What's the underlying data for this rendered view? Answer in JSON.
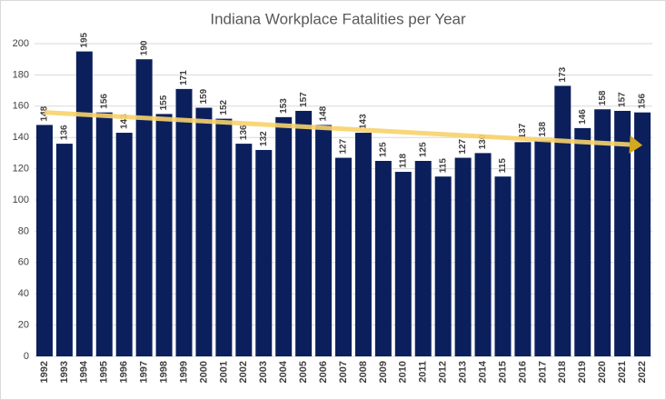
{
  "chart_data": {
    "type": "bar",
    "title": "Indiana Workplace Fatalities per Year",
    "categories": [
      "1992",
      "1993",
      "1994",
      "1995",
      "1996",
      "1997",
      "1998",
      "1999",
      "2000",
      "2001",
      "2002",
      "2003",
      "2004",
      "2005",
      "2006",
      "2007",
      "2008",
      "2009",
      "2010",
      "2011",
      "2012",
      "2013",
      "2014",
      "2015",
      "2016",
      "2017",
      "2018",
      "2019",
      "2020",
      "2021",
      "2022"
    ],
    "values": [
      148,
      136,
      195,
      156,
      143,
      190,
      155,
      171,
      159,
      152,
      136,
      132,
      153,
      157,
      148,
      127,
      143,
      125,
      118,
      125,
      115,
      127,
      130,
      115,
      137,
      138,
      173,
      146,
      158,
      157,
      156
    ],
    "color": "#0b1f5c",
    "ylim": [
      0,
      200
    ],
    "yticks": [
      0,
      20,
      40,
      60,
      80,
      100,
      120,
      140,
      160,
      180,
      200
    ],
    "grid": true,
    "trend": {
      "color": "#f7d26a",
      "values": [
        156,
        135
      ]
    }
  }
}
